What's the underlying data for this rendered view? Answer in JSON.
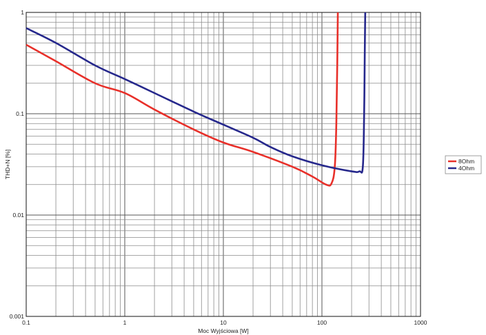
{
  "chart_data": {
    "type": "line",
    "title": "",
    "xlabel": "Moc Wyjściowa [W]",
    "ylabel": "THD+N [%]",
    "x_scale": "log",
    "y_scale": "log",
    "xlim": [
      0.1,
      1000
    ],
    "ylim": [
      0.001,
      1
    ],
    "grid": true,
    "legend_position": "right",
    "x_ticks": [
      "0.1",
      "1",
      "10",
      "100",
      "1000"
    ],
    "y_ticks": [
      "0.001",
      "0.01",
      "0.1",
      "1"
    ],
    "series": [
      {
        "name": "8Ohm",
        "color": "#e8302a",
        "points": [
          [
            0.1,
            0.48
          ],
          [
            0.2,
            0.33
          ],
          [
            0.5,
            0.2
          ],
          [
            1,
            0.16
          ],
          [
            2,
            0.11
          ],
          [
            5,
            0.07
          ],
          [
            10,
            0.052
          ],
          [
            20,
            0.042
          ],
          [
            50,
            0.03
          ],
          [
            80,
            0.024
          ],
          [
            110,
            0.02
          ],
          [
            125,
            0.0205
          ],
          [
            135,
            0.03
          ],
          [
            140,
            0.08
          ],
          [
            143,
            0.3
          ],
          [
            145,
            1.0
          ]
        ]
      },
      {
        "name": "4Ohm",
        "color": "#26288c",
        "points": [
          [
            0.1,
            0.7
          ],
          [
            0.2,
            0.5
          ],
          [
            0.5,
            0.3
          ],
          [
            1,
            0.22
          ],
          [
            2,
            0.16
          ],
          [
            5,
            0.105
          ],
          [
            10,
            0.078
          ],
          [
            20,
            0.058
          ],
          [
            30,
            0.047
          ],
          [
            50,
            0.038
          ],
          [
            100,
            0.031
          ],
          [
            200,
            0.027
          ],
          [
            240,
            0.027
          ],
          [
            260,
            0.03
          ],
          [
            268,
            0.1
          ],
          [
            272,
            0.4
          ],
          [
            275,
            1.0
          ]
        ]
      }
    ]
  }
}
